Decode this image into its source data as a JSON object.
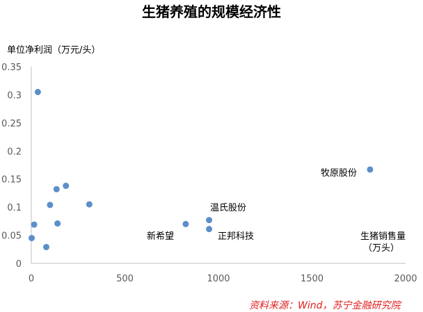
{
  "chart_data": {
    "type": "scatter",
    "title": "生猪养殖的规模经济性",
    "ylabel": "单位净利润（万元/头）",
    "xlabel": [
      "生猪销售量",
      "（万头）"
    ],
    "xlim": [
      0,
      2000
    ],
    "ylim": [
      0,
      0.35
    ],
    "x_ticks": [
      "0",
      "500",
      "1000",
      "1500",
      "2000"
    ],
    "y_ticks": [
      "0",
      "0.05",
      "0.1",
      "0.15",
      "0.2",
      "0.25",
      "0.3",
      "0.35"
    ],
    "grid": false,
    "marker_color": "#5b8fc9",
    "points": [
      {
        "x": 2,
        "y": 0.045
      },
      {
        "x": 15,
        "y": 0.069
      },
      {
        "x": 35,
        "y": 0.305
      },
      {
        "x": 80,
        "y": 0.029
      },
      {
        "x": 100,
        "y": 0.104
      },
      {
        "x": 135,
        "y": 0.132
      },
      {
        "x": 140,
        "y": 0.071
      },
      {
        "x": 185,
        "y": 0.138
      },
      {
        "x": 310,
        "y": 0.105
      },
      {
        "x": 825,
        "y": 0.07
      },
      {
        "x": 950,
        "y": 0.077
      },
      {
        "x": 950,
        "y": 0.061
      },
      {
        "x": 1810,
        "y": 0.167
      }
    ],
    "annotations": [
      "牧原股份",
      "温氏股份",
      "新希望",
      "正邦科技"
    ]
  },
  "source": "资料来源：Wind，苏宁金融研究院"
}
